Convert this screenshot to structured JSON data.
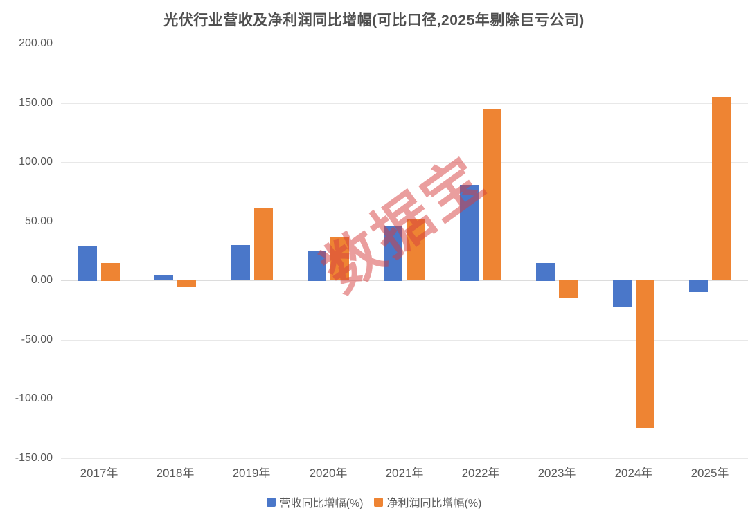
{
  "watermark": "数据宝",
  "colors": {
    "revenue_bar": "#4A77C9",
    "profit_bar": "#EE8433",
    "grid_line": "#E8E8E8",
    "zero_line": "#DCDCDC",
    "axis_text": "#595959",
    "title_text": "#4F4F4F",
    "watermark_text": "rgba(214,62,62,0.5)"
  },
  "chart_data": {
    "type": "bar",
    "title": "光伏行业营收及净利润同比增幅(可比口径,2025年剔除巨亏公司)",
    "categories": [
      "2017年",
      "2018年",
      "2019年",
      "2020年",
      "2021年",
      "2022年",
      "2023年",
      "2024年",
      "2025年"
    ],
    "series": [
      {
        "key": "revenue",
        "name": "营收同比增幅(%)",
        "color": "#4A77C9",
        "values": [
          29,
          4,
          30,
          25,
          46,
          81,
          15,
          -22,
          -10
        ]
      },
      {
        "key": "profit",
        "name": "净利润同比增幅(%)",
        "color": "#EE8433",
        "values": [
          15,
          -6,
          61,
          37,
          52,
          145,
          -15,
          -125,
          155
        ]
      }
    ],
    "xlabel": "",
    "ylabel": "",
    "ylim": [
      -150,
      200
    ],
    "ytick_step": 50,
    "yticks": [
      200,
      150,
      100,
      50,
      0,
      -50,
      -100,
      -150
    ],
    "ytick_labels": [
      "200.00",
      "150.00",
      "100.00",
      "50.00",
      "0.00",
      "-50.00",
      "-100.00",
      "-150.00"
    ],
    "grid": true,
    "legend_position": "bottom"
  }
}
